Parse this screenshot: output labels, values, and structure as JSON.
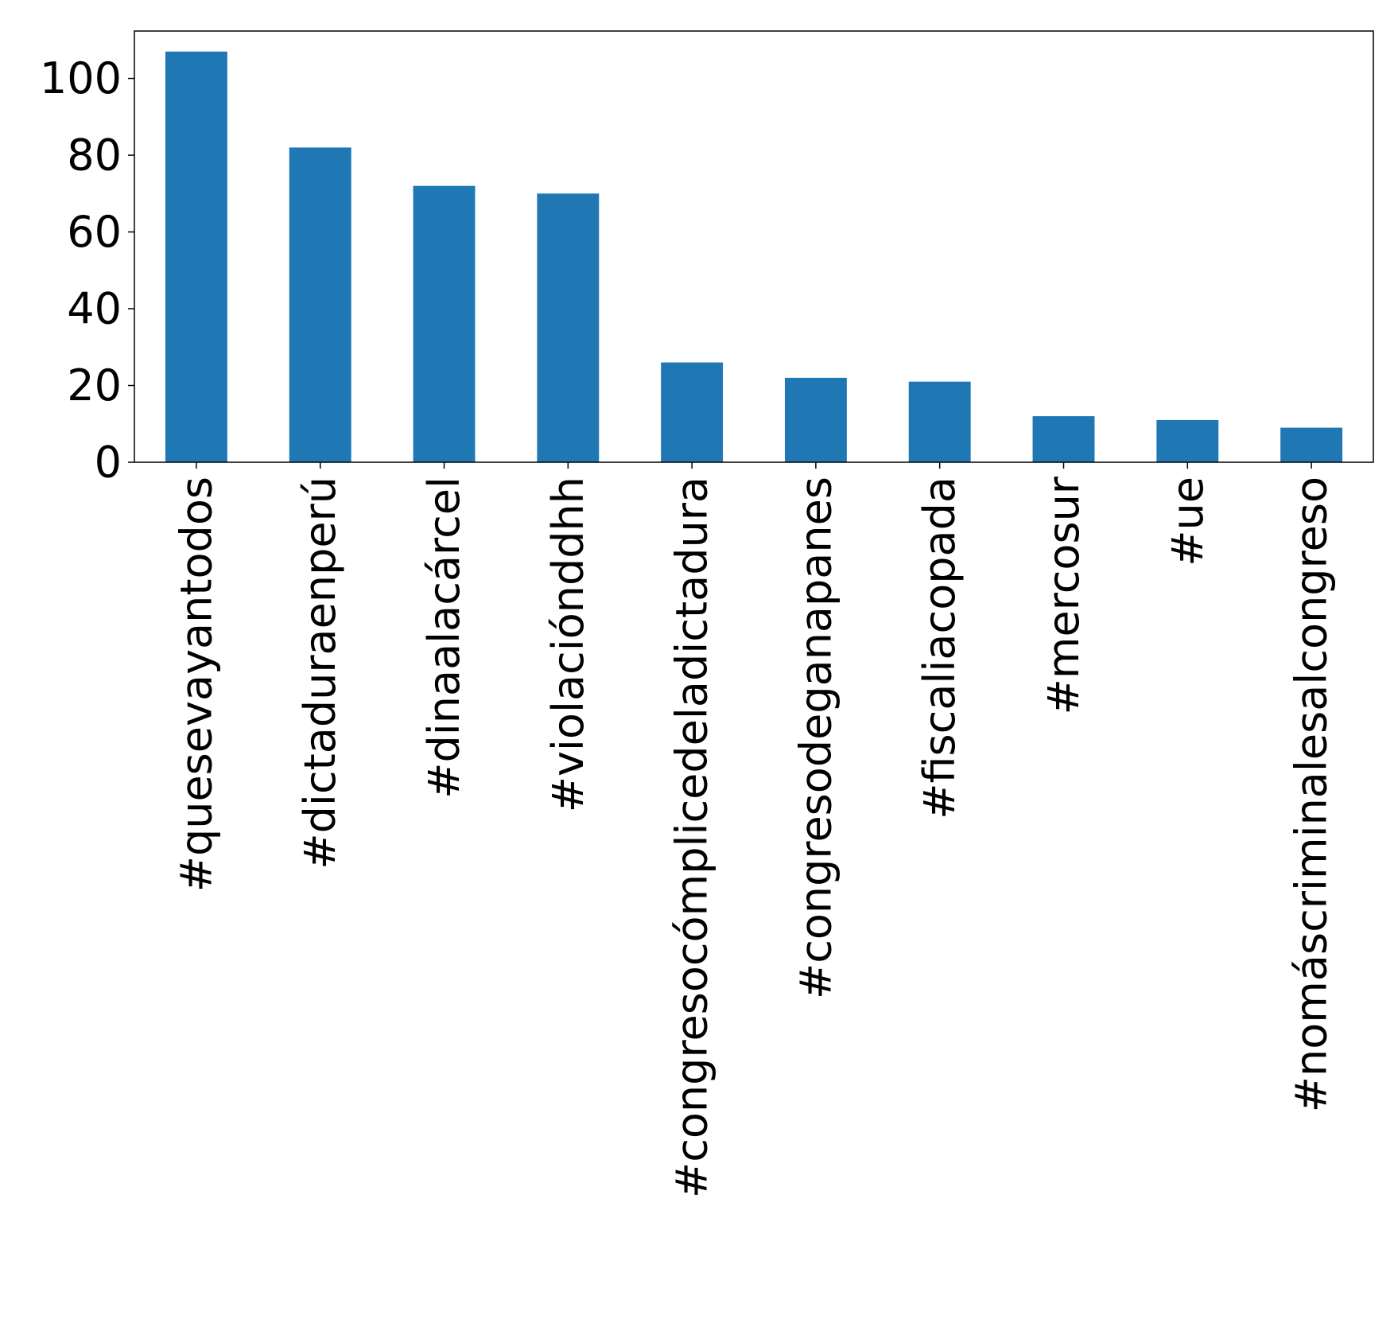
{
  "chart_data": {
    "type": "bar",
    "categories": [
      "#quesevayantodos",
      "#dictaduraenperú",
      "#dinaalacárcel",
      "#violaciónddhh",
      "#congresocómplicedeladictadura",
      "#congresodeganapanes",
      "#fiscaliacopada",
      "#mercosur",
      "#ue",
      "#nomáscriminalesalcongreso"
    ],
    "values": [
      107,
      82,
      72,
      70,
      26,
      22,
      21,
      12,
      11,
      9
    ],
    "title": "",
    "xlabel": "",
    "ylabel": "",
    "ylim": [
      0,
      112.35
    ],
    "yticks": [
      0,
      20,
      40,
      60,
      80,
      100
    ],
    "bar_color": "#1f77b4",
    "grid": false,
    "legend": "none"
  }
}
